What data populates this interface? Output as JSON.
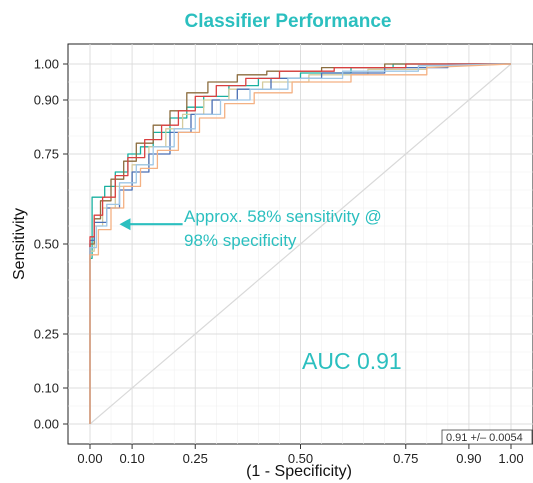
{
  "chart_data": {
    "type": "line",
    "title": "Classifier Performance",
    "xlabel": "(1 - Specificity)",
    "ylabel": "Sensitivity",
    "xlim": [
      0,
      1
    ],
    "ylim": [
      0,
      1
    ],
    "xticks": [
      0.0,
      0.1,
      0.25,
      0.5,
      0.75,
      0.9,
      1.0
    ],
    "xtick_labels": [
      "0.00",
      "0.10",
      "0.25",
      "0.50",
      "0.75",
      "0.90",
      "1.00"
    ],
    "yticks": [
      0.0,
      0.1,
      0.25,
      0.5,
      0.75,
      0.9,
      1.0
    ],
    "ytick_labels": [
      "0.00",
      "0.10",
      "0.25",
      "0.50",
      "0.75",
      "0.90",
      "1.00"
    ],
    "grid": true,
    "reference_line": {
      "x": [
        0,
        1
      ],
      "y": [
        0,
        1
      ],
      "color": "#d9d9d9"
    },
    "accent_color": "#2bbfbf",
    "annotations": {
      "arrow_text_line1": "Approx. 58% sensitivity @",
      "arrow_text_line2": "98% specificity",
      "arrow_from": [
        0.22,
        0.555
      ],
      "arrow_to": [
        0.07,
        0.555
      ],
      "auc_text": "AUC 0.91",
      "auc_anchor": [
        0.55,
        0.17
      ],
      "note_text": "0.91 +/– 0.0054"
    },
    "series": [
      {
        "color": "#1ab0a0",
        "x": [
          0,
          0,
          0.005,
          0.005,
          0.035,
          0.035,
          0.06,
          0.06,
          0.09,
          0.09,
          0.12,
          0.12,
          0.15,
          0.15,
          0.19,
          0.19,
          0.23,
          0.23,
          0.27,
          0.27,
          0.33,
          0.33,
          0.4,
          0.4,
          0.5,
          0.5,
          0.62,
          0.62,
          0.72,
          0.72,
          1
        ],
        "y": [
          0,
          0.46,
          0.46,
          0.63,
          0.63,
          0.66,
          0.66,
          0.7,
          0.7,
          0.75,
          0.75,
          0.77,
          0.77,
          0.81,
          0.81,
          0.85,
          0.85,
          0.88,
          0.88,
          0.91,
          0.91,
          0.94,
          0.94,
          0.96,
          0.96,
          0.975,
          0.975,
          0.99,
          0.99,
          1.0,
          1.0
        ]
      },
      {
        "color": "#d6cc9e",
        "x": [
          0,
          0,
          0.01,
          0.01,
          0.03,
          0.03,
          0.06,
          0.06,
          0.1,
          0.1,
          0.14,
          0.14,
          0.18,
          0.18,
          0.22,
          0.22,
          0.27,
          0.27,
          0.33,
          0.33,
          0.41,
          0.41,
          0.52,
          0.52,
          0.66,
          0.66,
          0.8,
          0.8,
          1
        ],
        "y": [
          0,
          0.48,
          0.48,
          0.55,
          0.55,
          0.6,
          0.6,
          0.66,
          0.66,
          0.72,
          0.72,
          0.77,
          0.77,
          0.82,
          0.82,
          0.86,
          0.86,
          0.9,
          0.9,
          0.93,
          0.93,
          0.95,
          0.95,
          0.97,
          0.97,
          0.985,
          0.985,
          0.995,
          1.0
        ]
      },
      {
        "color": "#8c6d3f",
        "x": [
          0,
          0,
          0.01,
          0.01,
          0.025,
          0.025,
          0.05,
          0.05,
          0.08,
          0.08,
          0.11,
          0.11,
          0.15,
          0.15,
          0.19,
          0.19,
          0.23,
          0.23,
          0.28,
          0.28,
          0.35,
          0.35,
          0.42,
          0.42,
          0.55,
          0.55,
          0.7,
          0.7,
          0.9,
          0.9,
          1
        ],
        "y": [
          0,
          0.5,
          0.5,
          0.57,
          0.57,
          0.62,
          0.62,
          0.68,
          0.68,
          0.73,
          0.73,
          0.78,
          0.78,
          0.83,
          0.83,
          0.87,
          0.87,
          0.92,
          0.92,
          0.95,
          0.95,
          0.97,
          0.97,
          0.98,
          0.98,
          0.99,
          0.99,
          1.0,
          1.0,
          1.0,
          1.0
        ]
      },
      {
        "color": "#4a6fb5",
        "x": [
          0,
          0,
          0.01,
          0.01,
          0.04,
          0.04,
          0.07,
          0.07,
          0.1,
          0.1,
          0.14,
          0.14,
          0.19,
          0.19,
          0.24,
          0.24,
          0.29,
          0.29,
          0.35,
          0.35,
          0.43,
          0.43,
          0.55,
          0.55,
          0.7,
          0.7,
          0.85,
          0.85,
          1
        ],
        "y": [
          0,
          0.51,
          0.51,
          0.56,
          0.56,
          0.6,
          0.6,
          0.65,
          0.65,
          0.7,
          0.7,
          0.75,
          0.75,
          0.81,
          0.81,
          0.86,
          0.86,
          0.9,
          0.9,
          0.93,
          0.93,
          0.96,
          0.96,
          0.975,
          0.975,
          0.99,
          0.99,
          1.0,
          1.0
        ]
      },
      {
        "color": "#d94040",
        "x": [
          0,
          0,
          0.01,
          0.01,
          0.03,
          0.03,
          0.06,
          0.06,
          0.09,
          0.09,
          0.13,
          0.13,
          0.17,
          0.17,
          0.21,
          0.21,
          0.25,
          0.25,
          0.3,
          0.3,
          0.37,
          0.37,
          0.45,
          0.45,
          0.58,
          0.58,
          0.75,
          0.75,
          1
        ],
        "y": [
          0,
          0.52,
          0.52,
          0.58,
          0.58,
          0.63,
          0.63,
          0.69,
          0.69,
          0.74,
          0.74,
          0.79,
          0.79,
          0.83,
          0.83,
          0.87,
          0.87,
          0.91,
          0.91,
          0.94,
          0.94,
          0.96,
          0.96,
          0.98,
          0.98,
          0.99,
          0.99,
          1.0,
          1.0
        ]
      },
      {
        "color": "#9fc7e6",
        "x": [
          0,
          0,
          0.015,
          0.015,
          0.04,
          0.04,
          0.07,
          0.07,
          0.11,
          0.11,
          0.15,
          0.15,
          0.2,
          0.2,
          0.25,
          0.25,
          0.31,
          0.31,
          0.38,
          0.38,
          0.47,
          0.47,
          0.6,
          0.6,
          0.78,
          0.78,
          1
        ],
        "y": [
          0,
          0.49,
          0.49,
          0.55,
          0.55,
          0.61,
          0.61,
          0.67,
          0.67,
          0.72,
          0.72,
          0.77,
          0.77,
          0.82,
          0.82,
          0.86,
          0.86,
          0.9,
          0.9,
          0.93,
          0.93,
          0.96,
          0.96,
          0.98,
          0.98,
          0.995,
          1.0
        ]
      },
      {
        "color": "#f4b183",
        "x": [
          0,
          0,
          0.02,
          0.02,
          0.05,
          0.05,
          0.08,
          0.08,
          0.12,
          0.12,
          0.16,
          0.16,
          0.21,
          0.21,
          0.26,
          0.26,
          0.32,
          0.32,
          0.39,
          0.39,
          0.48,
          0.48,
          0.62,
          0.62,
          0.8,
          0.8,
          1
        ],
        "y": [
          0,
          0.47,
          0.47,
          0.54,
          0.54,
          0.6,
          0.6,
          0.66,
          0.66,
          0.71,
          0.71,
          0.76,
          0.76,
          0.81,
          0.81,
          0.85,
          0.85,
          0.89,
          0.89,
          0.92,
          0.92,
          0.95,
          0.95,
          0.97,
          0.97,
          0.99,
          1.0
        ]
      }
    ]
  }
}
